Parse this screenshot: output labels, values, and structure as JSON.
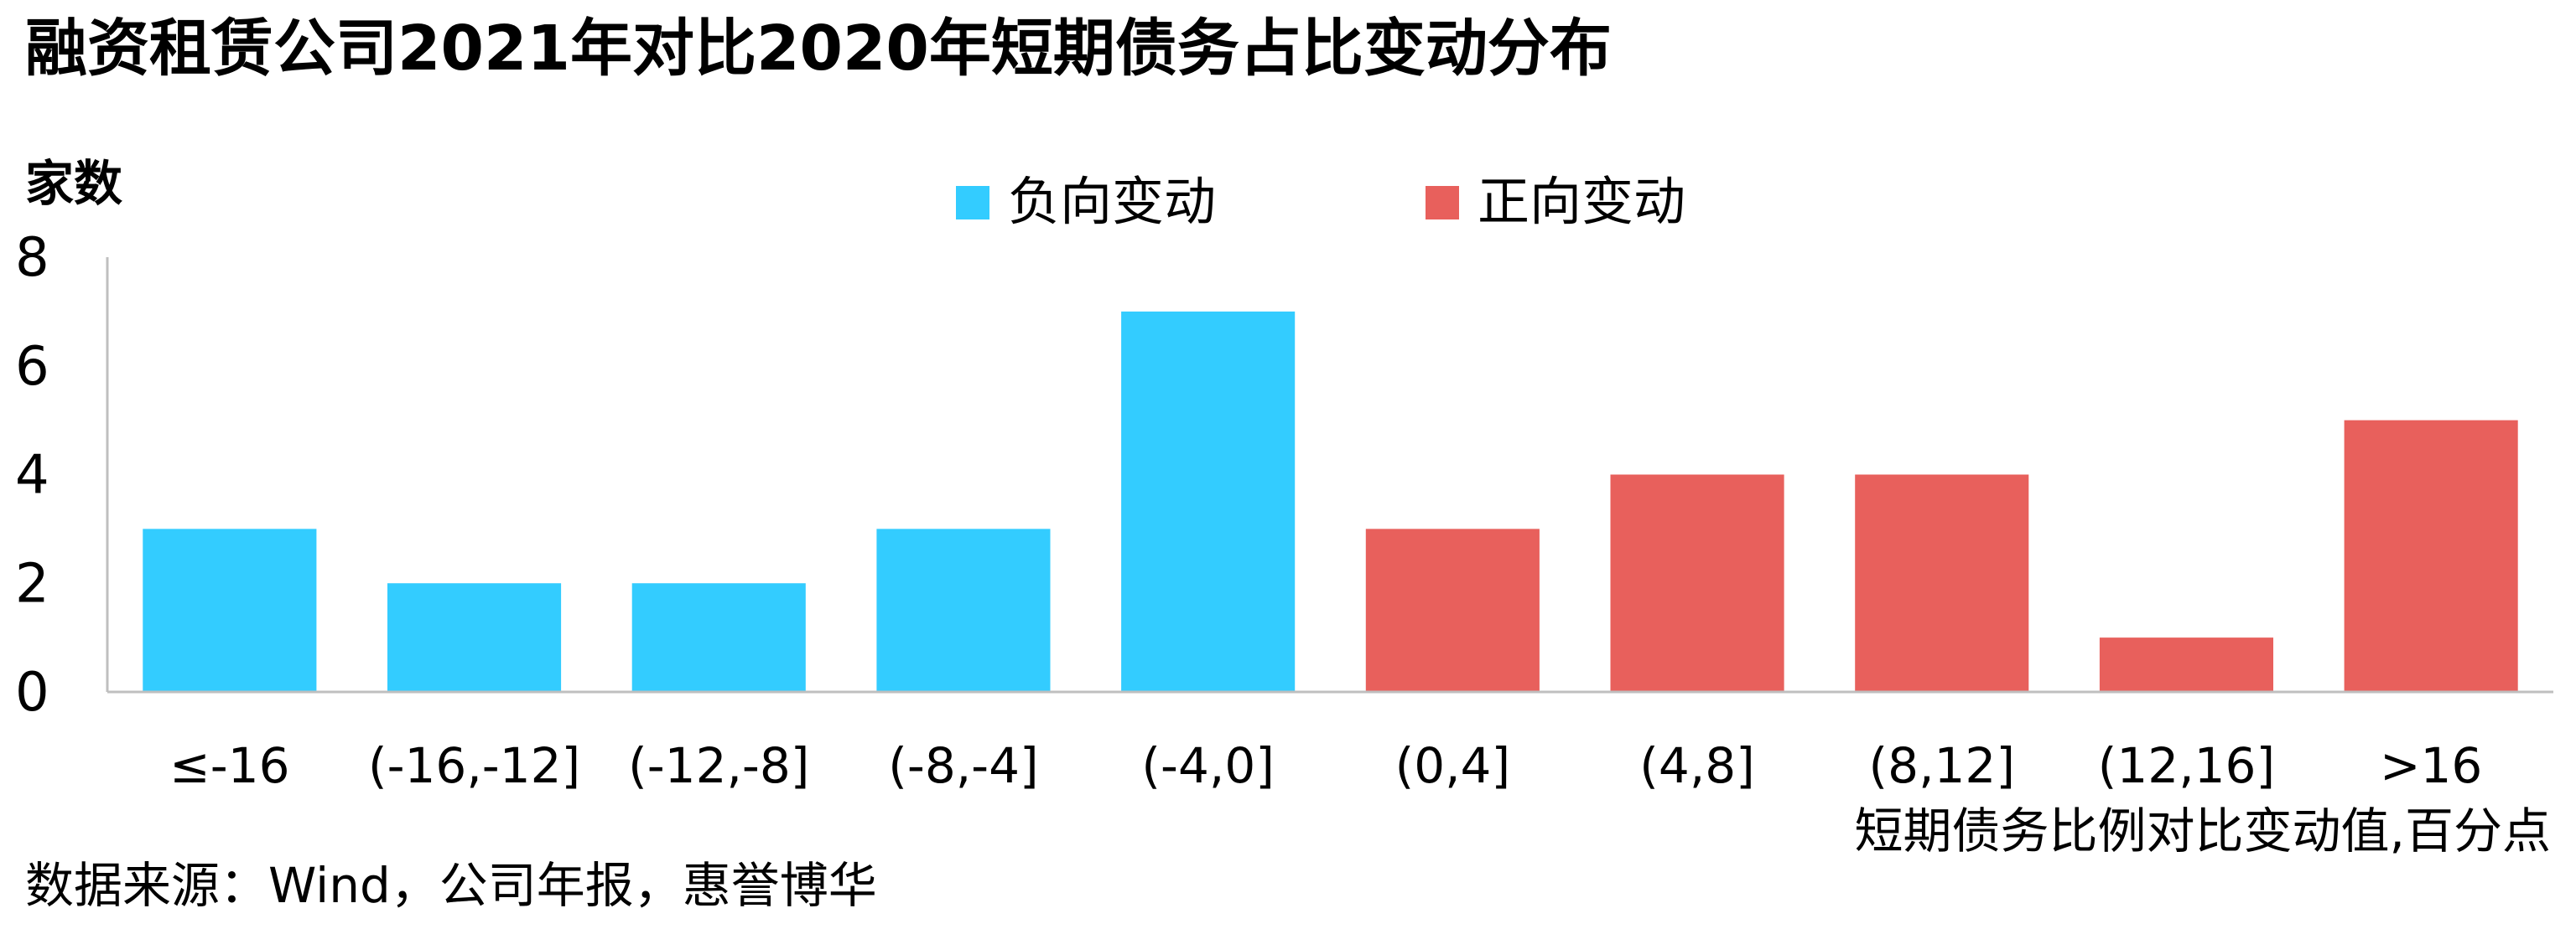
{
  "title": "融资租赁公司2021年对比2020年短期债务占比变动分布",
  "source": "数据来源：Wind，公司年报，惠誉博华",
  "colors": {
    "negative": "#33CCFF",
    "positive": "#E8605C",
    "axis": "#BFBFBF"
  },
  "chart_data": {
    "type": "bar",
    "title": "融资租赁公司2021年对比2020年短期债务占比变动分布",
    "ylabel": "家数",
    "xlabel": "短期债务比例对比变动值,百分点",
    "ylim": [
      0,
      8
    ],
    "yticks": [
      0,
      2,
      4,
      6,
      8
    ],
    "grid": false,
    "legend_position": "top-center",
    "categories": [
      "≤-16",
      "(-16,-12]",
      "(-12,-8]",
      "(-8,-4]",
      "(-4,0]",
      "(0,4]",
      "(4,8]",
      "(8,12]",
      "(12,16]",
      ">16"
    ],
    "series": [
      {
        "name": "负向变动",
        "color": "#33CCFF",
        "values": [
          3,
          2,
          2,
          3,
          7,
          null,
          null,
          null,
          null,
          null
        ]
      },
      {
        "name": "正向变动",
        "color": "#E8605C",
        "values": [
          null,
          null,
          null,
          null,
          null,
          3,
          4,
          4,
          1,
          5
        ]
      }
    ]
  }
}
